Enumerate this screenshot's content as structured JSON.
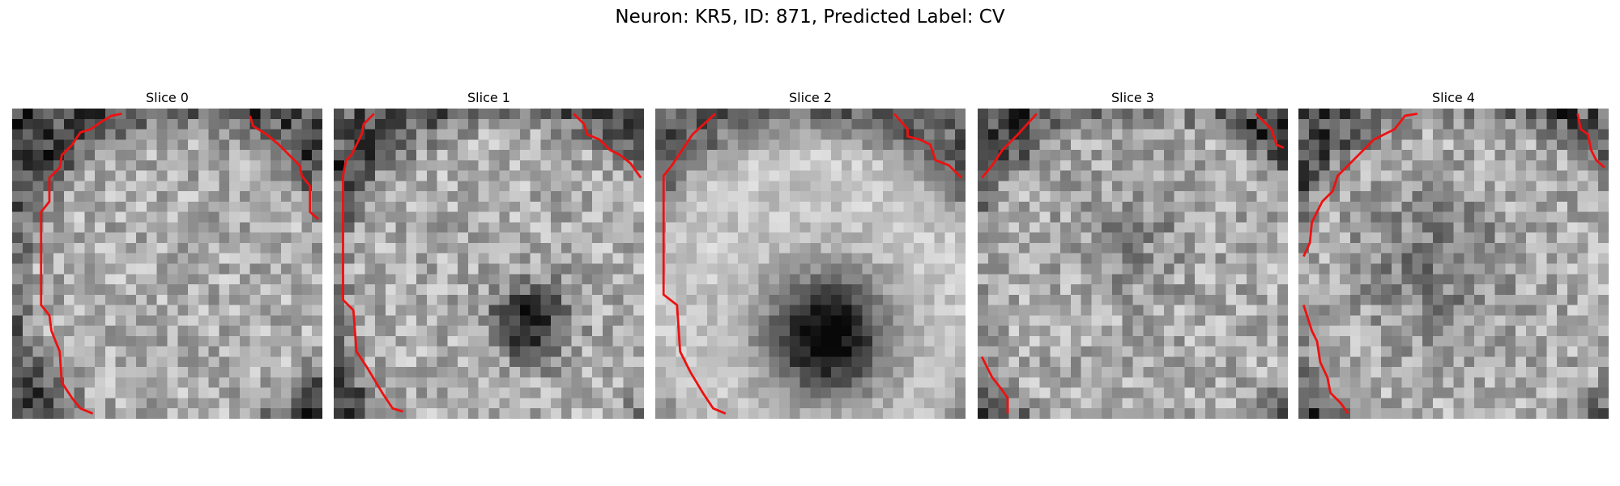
{
  "title": "Neuron: KR5, ID: 871, Predicted Label: CV",
  "panels": [
    {
      "title": "Slice 0"
    },
    {
      "title": "Slice 1"
    },
    {
      "title": "Slice 2"
    },
    {
      "title": "Slice 3"
    },
    {
      "title": "Slice 4"
    }
  ]
}
